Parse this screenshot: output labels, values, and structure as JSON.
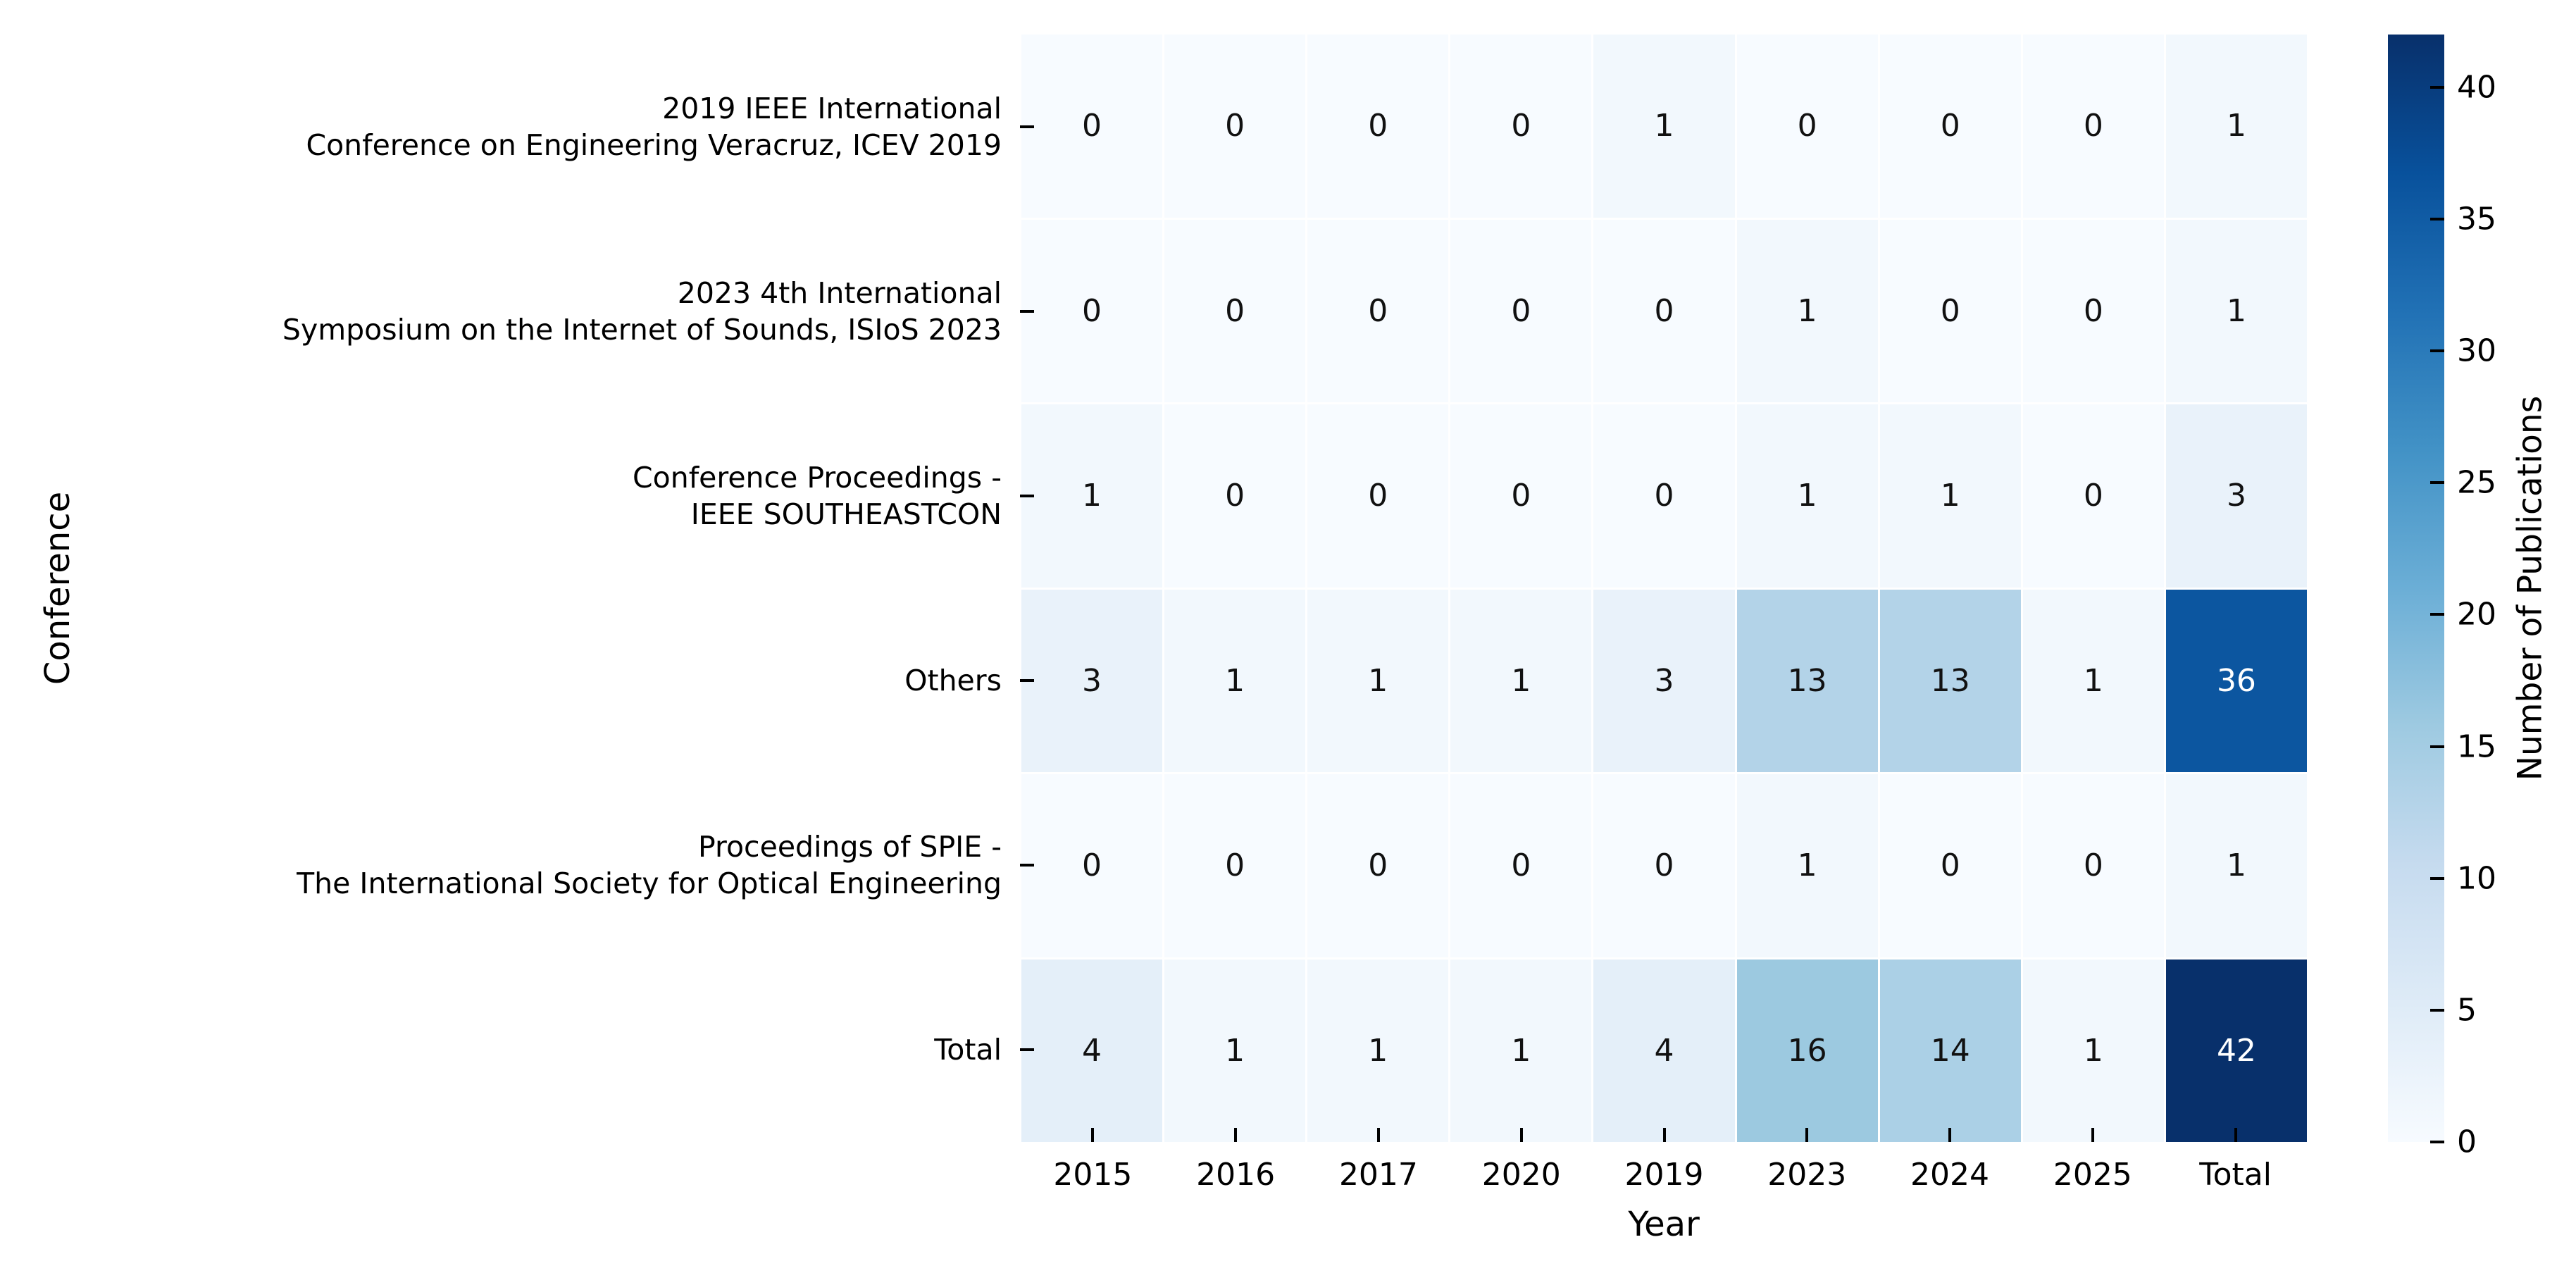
{
  "chart_data": {
    "type": "heatmap",
    "title": "",
    "xlabel": "Year",
    "ylabel": "Conference",
    "columns": [
      "2015",
      "2016",
      "2017",
      "2020",
      "2019",
      "2023",
      "2024",
      "2025",
      "Total"
    ],
    "rows": [
      {
        "label": "2019 IEEE International\nConference on Engineering Veracruz, ICEV 2019",
        "values": [
          0,
          0,
          0,
          0,
          1,
          0,
          0,
          0,
          1
        ]
      },
      {
        "label": "2023 4th International\nSymposium on the Internet of Sounds, ISIoS 2023",
        "values": [
          0,
          0,
          0,
          0,
          0,
          1,
          0,
          0,
          1
        ]
      },
      {
        "label": "Conference Proceedings -\nIEEE SOUTHEASTCON",
        "values": [
          1,
          0,
          0,
          0,
          0,
          1,
          1,
          0,
          3
        ]
      },
      {
        "label": "Others",
        "values": [
          3,
          1,
          1,
          1,
          3,
          13,
          13,
          1,
          36
        ]
      },
      {
        "label": "Proceedings of SPIE -\nThe International Society for Optical Engineering",
        "values": [
          0,
          0,
          0,
          0,
          0,
          1,
          0,
          0,
          1
        ]
      },
      {
        "label": "Total",
        "values": [
          4,
          1,
          1,
          1,
          4,
          16,
          14,
          1,
          42
        ]
      }
    ],
    "vmin": 0,
    "vmax": 42,
    "colormap": {
      "name": "Blues",
      "stops": [
        "#f7fbff",
        "#deebf7",
        "#c6dbef",
        "#9ecae1",
        "#6baed6",
        "#4292c6",
        "#2171b5",
        "#08519c",
        "#08306b"
      ]
    },
    "annotation_dark_text": "#111111",
    "annotation_light_text": "#ffffff",
    "grid_gap_color": "#ffffff",
    "colorbar": {
      "label": "Number of Publications",
      "ticks": [
        0,
        5,
        10,
        15,
        20,
        25,
        30,
        35,
        40
      ]
    },
    "legend_position": "right-colorbar",
    "grid": "white-cell-separators"
  }
}
